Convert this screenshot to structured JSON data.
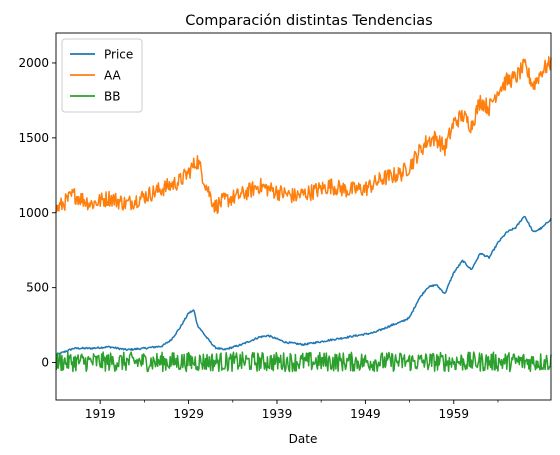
{
  "chart_data": {
    "type": "line",
    "title": "Comparación distintas Tendencias",
    "xlabel": "Date",
    "ylabel": "",
    "xlim": [
      1914.0,
      1970.0
    ],
    "ylim": [
      -250,
      2200
    ],
    "x_ticks": [
      1919,
      1929,
      1939,
      1949,
      1959
    ],
    "x_tick_labels": [
      "1919",
      "1929",
      "1939",
      "1949",
      "1959"
    ],
    "x_minor_ticks": [
      1924,
      1934,
      1944,
      1954,
      1964
    ],
    "y_ticks": [
      0,
      500,
      1000,
      1500,
      2000
    ],
    "y_tick_labels": [
      "0",
      "500",
      "1000",
      "1500",
      "2000"
    ],
    "legend_position": "top-left",
    "series": [
      {
        "name": "Price",
        "color": "#1f77b4",
        "x": [
          1914,
          1916,
          1918,
          1920,
          1922,
          1924,
          1926,
          1927,
          1928,
          1929,
          1929.6,
          1930,
          1931,
          1932,
          1933,
          1935,
          1937,
          1938,
          1940,
          1942,
          1944,
          1946,
          1948,
          1950,
          1952,
          1953,
          1954,
          1955,
          1956,
          1957,
          1958,
          1959,
          1960,
          1961,
          1962,
          1963,
          1964,
          1965,
          1966,
          1967,
          1968,
          1969,
          1970
        ],
        "values": [
          50,
          95,
          95,
          105,
          85,
          95,
          110,
          150,
          230,
          330,
          350,
          250,
          170,
          100,
          85,
          120,
          170,
          180,
          135,
          120,
          140,
          160,
          180,
          200,
          250,
          270,
          300,
          420,
          500,
          520,
          460,
          600,
          680,
          620,
          730,
          700,
          800,
          870,
          900,
          980,
          870,
          900,
          960
        ]
      },
      {
        "name": "AA",
        "color": "#ff7f0e",
        "x": [
          1914,
          1916,
          1918,
          1920,
          1922,
          1924,
          1926,
          1928,
          1929,
          1930,
          1931,
          1932,
          1933,
          1935,
          1937,
          1939,
          1941,
          1943,
          1945,
          1947,
          1949,
          1951,
          1953,
          1954,
          1955,
          1956,
          1957,
          1958,
          1959,
          1960,
          1961,
          1962,
          1963,
          1964,
          1965,
          1966,
          1967,
          1968,
          1969,
          1970
        ],
        "values": [
          1020,
          1120,
          1060,
          1100,
          1060,
          1110,
          1160,
          1210,
          1270,
          1350,
          1180,
          1040,
          1080,
          1120,
          1180,
          1140,
          1110,
          1140,
          1180,
          1150,
          1160,
          1230,
          1260,
          1310,
          1400,
          1480,
          1500,
          1430,
          1600,
          1650,
          1580,
          1750,
          1700,
          1820,
          1880,
          1900,
          1980,
          1850,
          1950,
          2000
        ]
      },
      {
        "name": "BB",
        "color": "#2ca02c",
        "x": [
          1914,
          1970
        ],
        "values": [
          5,
          5
        ]
      }
    ]
  }
}
